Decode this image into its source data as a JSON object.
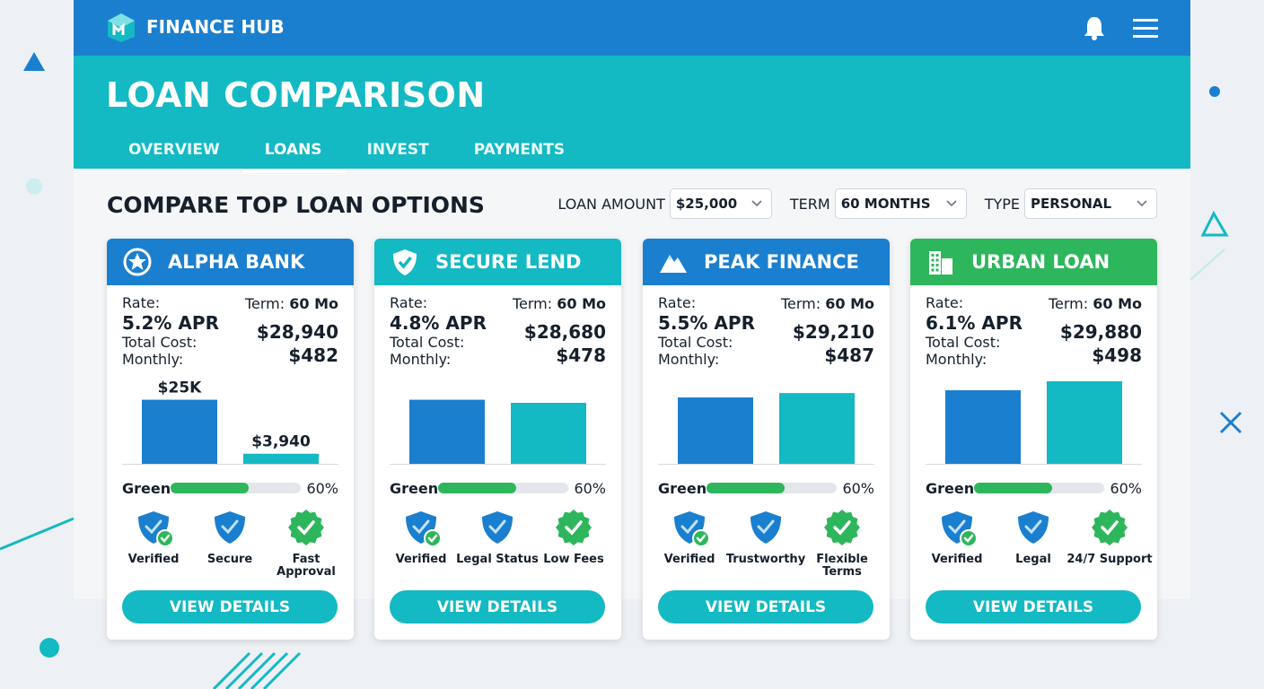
{
  "header": {
    "brand": "FINANCE HUB",
    "title": "LOAN COMPARISON",
    "tabs": [
      "OVERVIEW",
      "LOANS",
      "INVEST",
      "PAYMENTS"
    ],
    "active_tab": 1
  },
  "section": {
    "title": "COMPARE TOP LOAN OPTIONS",
    "filters": [
      {
        "label": "LOAN AMOUNT",
        "value": "$25,000"
      },
      {
        "label": "TERM",
        "value": "60 MONTHS"
      },
      {
        "label": "TYPE",
        "value": "PERSONAL"
      }
    ]
  },
  "cards": [
    {
      "name": "ALPHA BANK",
      "color": "#1b7fcf",
      "rate_label": "Rate:",
      "rate": "5.2% APR",
      "term_label": "Term:",
      "term": "60 Mo",
      "total_label": "Total Cost:",
      "total": "$28,940",
      "monthly_label": "Monthly:",
      "monthly": "$482",
      "chart": {
        "ylim": [
          0,
          35000
        ],
        "values": [
          25000,
          3940
        ],
        "value_labels": [
          "$25K",
          "$3,940"
        ],
        "colors": [
          "#1b7fcf",
          "#13b9c3"
        ]
      },
      "green": {
        "label": "Green",
        "value": 60,
        "value_label": "60%",
        "xlim": [
          0,
          100
        ]
      },
      "badges": [
        "Verified",
        "Secure",
        "Fast Approval"
      ],
      "button": "VIEW DETAILS"
    },
    {
      "name": "SECURE LEND",
      "color": "#13b9c3",
      "rate_label": "Rate:",
      "rate": "4.8% APR",
      "term_label": "Term:",
      "term": "60 Mo",
      "total_label": "Total Cost:",
      "total": "$28,680",
      "monthly_label": "Monthly:",
      "monthly": "$478",
      "chart": {
        "ylim": [
          0,
          35000
        ],
        "values": [
          25000,
          23800
        ],
        "colors": [
          "#1b7fcf",
          "#13b9c3"
        ]
      },
      "green": {
        "label": "Green",
        "value": 60,
        "value_label": "60%",
        "xlim": [
          0,
          100
        ]
      },
      "badges": [
        "Verified",
        "Legal Status",
        "Low Fees"
      ],
      "button": "VIEW DETAILS"
    },
    {
      "name": "PEAK FINANCE",
      "color": "#1b7fcf",
      "rate_label": "Rate:",
      "rate": "5.5% APR",
      "term_label": "Term:",
      "term": "60 Mo",
      "total_label": "Total Cost:",
      "total": "$29,210",
      "monthly_label": "Monthly:",
      "monthly": "$487",
      "chart": {
        "ylim": [
          0,
          35000
        ],
        "values": [
          25900,
          27600
        ],
        "colors": [
          "#1b7fcf",
          "#13b9c3"
        ]
      },
      "green": {
        "label": "Green",
        "value": 60,
        "value_label": "60%",
        "xlim": [
          0,
          100
        ]
      },
      "badges": [
        "Verified",
        "Trustworthy",
        "Flexible Terms"
      ],
      "button": "VIEW DETAILS"
    },
    {
      "name": "URBAN LOAN",
      "color": "#2eb65c",
      "rate_label": "Rate:",
      "rate": "6.1% APR",
      "term_label": "Term:",
      "term": "60 Mo",
      "total_label": "Total Cost:",
      "total": "$29,880",
      "monthly_label": "Monthly:",
      "monthly": "$498",
      "chart": {
        "ylim": [
          0,
          35000
        ],
        "values": [
          28700,
          32200
        ],
        "colors": [
          "#1b7fcf",
          "#13b9c3"
        ]
      },
      "green": {
        "label": "Green",
        "value": 60,
        "value_label": "60%",
        "xlim": [
          0,
          100
        ]
      },
      "badges": [
        "Verified",
        "Legal",
        "24/7 Support"
      ],
      "button": "VIEW DETAILS"
    }
  ]
}
